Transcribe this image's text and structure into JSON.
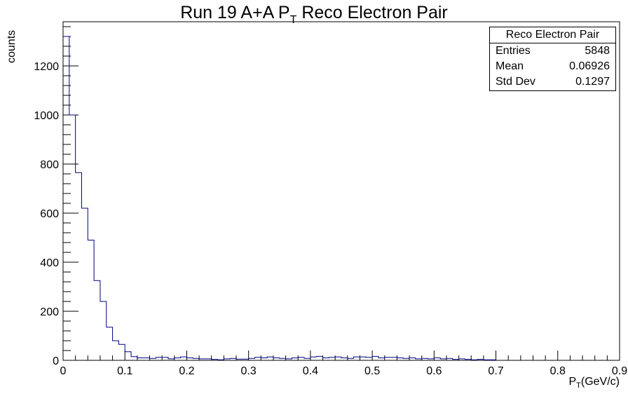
{
  "title": {
    "main": "Run 19 A+A P",
    "sub": "T",
    "rest": "Reco Electron Pair"
  },
  "stats_box": {
    "name": "Reco Electron Pair",
    "rows": [
      {
        "key": "Entries",
        "value": "5848"
      },
      {
        "key": "Mean",
        "value": "0.06926"
      },
      {
        "key": "Std Dev",
        "value": "0.1297"
      }
    ]
  },
  "axes": {
    "ylabel": "counts",
    "xlabel_main": "P",
    "xlabel_sub": "T",
    "xlabel_unit": "(GeV/c)"
  },
  "colors": {
    "line": "#000080",
    "axis": "#000000"
  },
  "chart_data": {
    "type": "bar",
    "subtype": "histogram-step",
    "title": "Run 19 A+A P_T Reco Electron Pair",
    "xlabel": "P_T(GeV/c)",
    "ylabel": "counts",
    "xlim": [
      0,
      0.9
    ],
    "ylim": [
      0,
      1380
    ],
    "bin_width": 0.01,
    "x_ticks": [
      "0",
      "0.1",
      "0.2",
      "0.3",
      "0.4",
      "0.5",
      "0.6",
      "0.7",
      "0.8",
      "0.9"
    ],
    "x_tick_values": [
      0,
      0.1,
      0.2,
      0.3,
      0.4,
      0.5,
      0.6,
      0.7,
      0.8,
      0.9
    ],
    "y_ticks": [
      "0",
      "200",
      "400",
      "600",
      "800",
      "1000",
      "1200"
    ],
    "y_tick_values": [
      0,
      200,
      400,
      600,
      800,
      1000,
      1200
    ],
    "bin_low_edges": [
      0.0,
      0.01,
      0.02,
      0.03,
      0.04,
      0.05,
      0.06,
      0.07,
      0.08,
      0.09,
      0.1,
      0.11,
      0.12,
      0.13,
      0.14,
      0.15,
      0.16,
      0.17,
      0.18,
      0.19,
      0.2,
      0.21,
      0.22,
      0.23,
      0.24,
      0.25,
      0.26,
      0.27,
      0.28,
      0.29,
      0.3,
      0.31,
      0.32,
      0.33,
      0.34,
      0.35,
      0.36,
      0.37,
      0.38,
      0.39,
      0.4,
      0.41,
      0.42,
      0.43,
      0.44,
      0.45,
      0.46,
      0.47,
      0.48,
      0.49,
      0.5,
      0.51,
      0.52,
      0.53,
      0.54,
      0.55,
      0.56,
      0.57,
      0.58,
      0.59,
      0.6,
      0.61,
      0.62,
      0.63,
      0.64,
      0.65,
      0.66,
      0.67,
      0.68,
      0.69
    ],
    "values": [
      1320,
      1000,
      765,
      620,
      490,
      325,
      240,
      135,
      80,
      65,
      35,
      15,
      10,
      10,
      8,
      12,
      12,
      6,
      10,
      14,
      10,
      8,
      6,
      6,
      4,
      2,
      6,
      8,
      5,
      5,
      8,
      12,
      10,
      14,
      10,
      8,
      6,
      10,
      12,
      8,
      14,
      16,
      10,
      12,
      14,
      10,
      8,
      14,
      14,
      12,
      16,
      10,
      12,
      12,
      10,
      8,
      10,
      6,
      8,
      6,
      10,
      6,
      8,
      4,
      6,
      4,
      2,
      4,
      2,
      2
    ]
  }
}
